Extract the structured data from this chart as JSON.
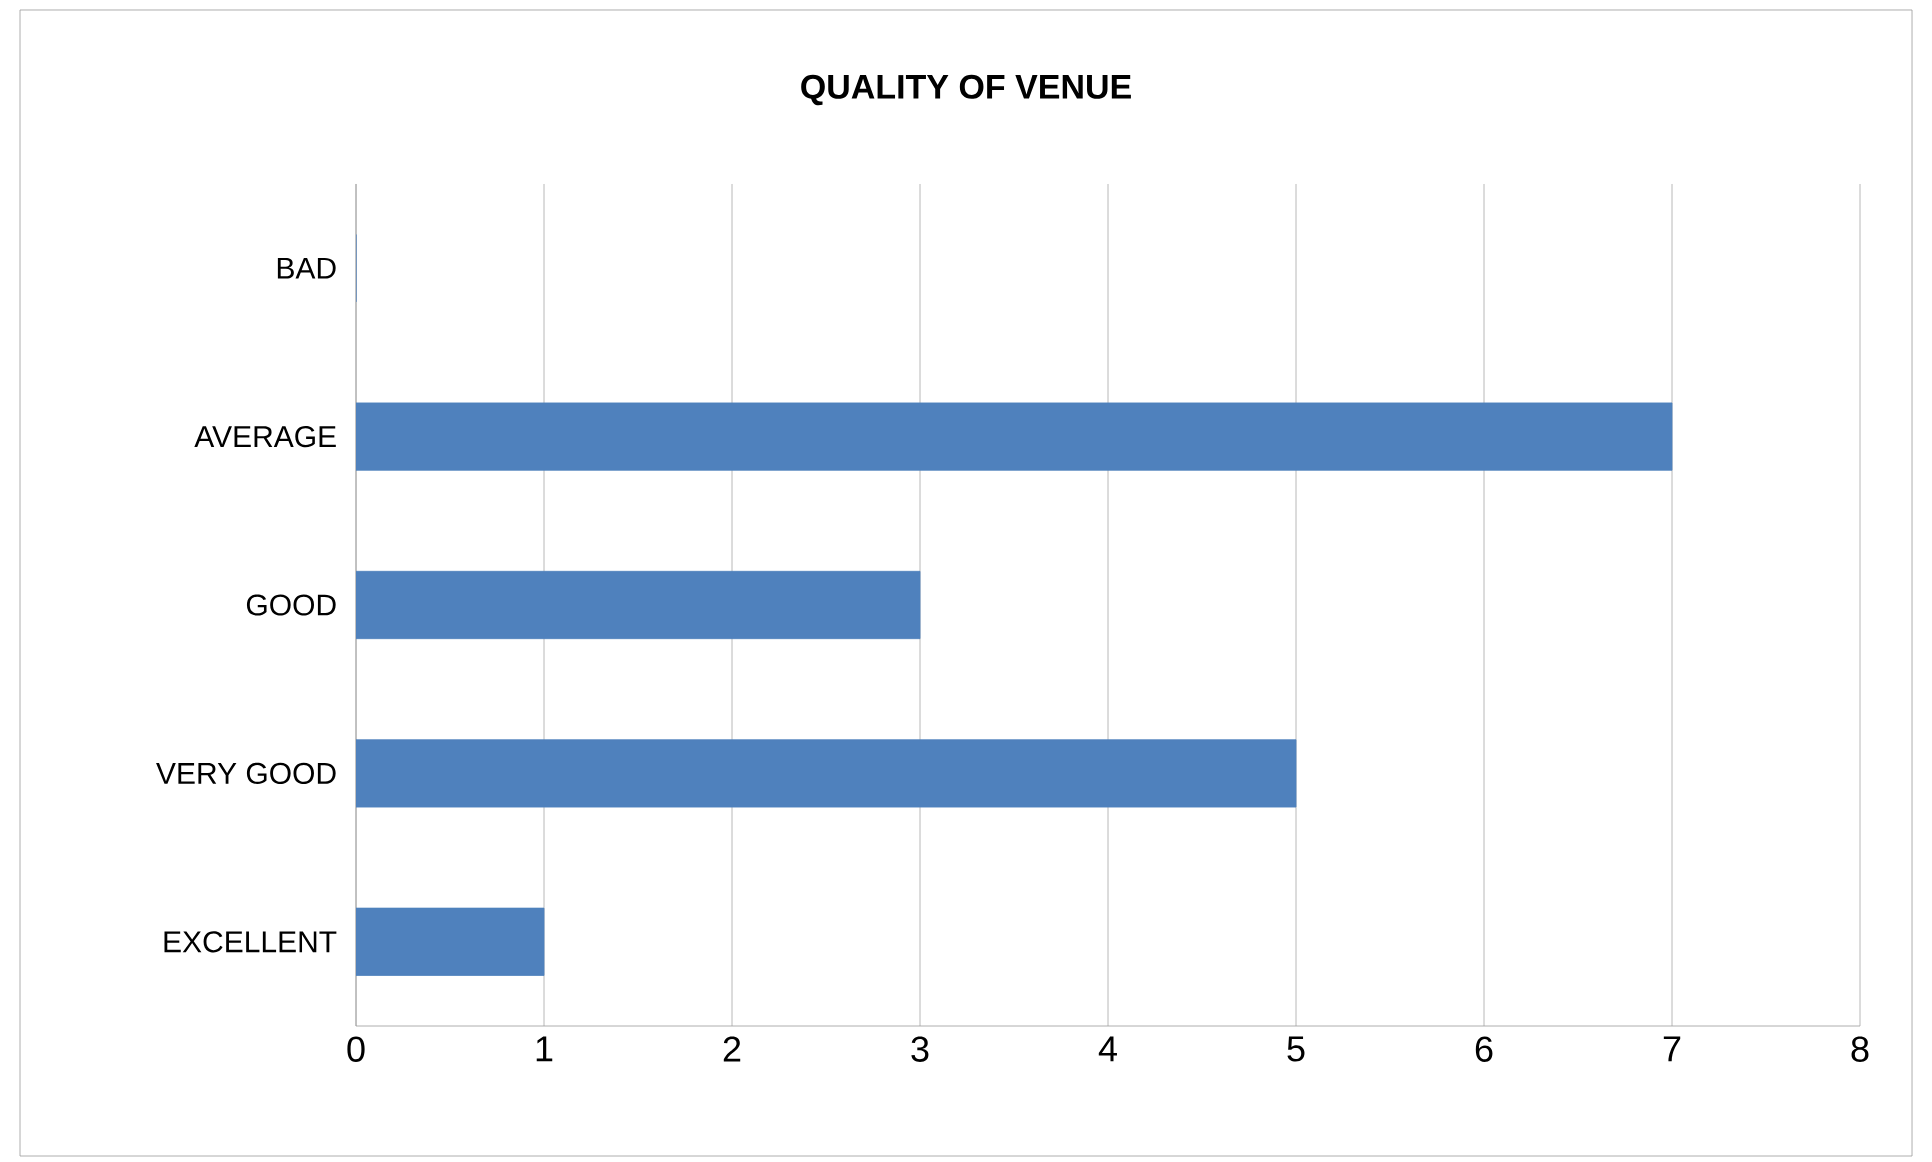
{
  "chart_data": {
    "type": "bar",
    "orientation": "horizontal",
    "title": "QUALITY OF VENUE",
    "categories": [
      "BAD",
      "AVERAGE",
      "GOOD",
      "VERY GOOD",
      "EXCELLENT"
    ],
    "values": [
      0,
      7,
      3,
      5,
      1
    ],
    "color": "#4f81bd",
    "xlim": [
      0,
      8
    ],
    "xticks": [
      0,
      1,
      2,
      3,
      4,
      5,
      6,
      7,
      8
    ],
    "grid": "x"
  }
}
